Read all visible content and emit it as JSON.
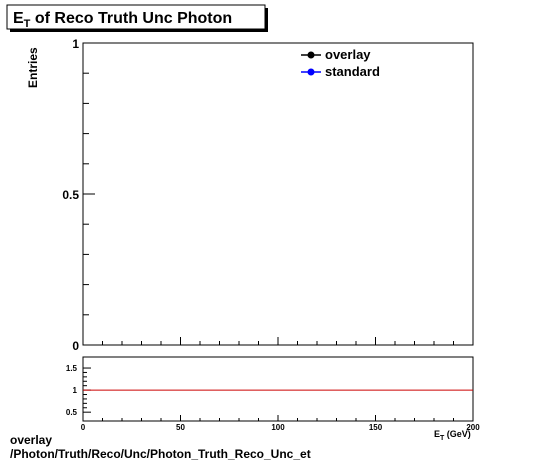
{
  "chart_data": [
    {
      "type": "line",
      "title": "E",
      "title_sub": "T",
      "title_rest": " of Reco Truth Unc Photon",
      "xlabel": "E",
      "xlabel_sub": "T",
      "xlabel_unit": " (GeV)",
      "ylabel": "Entries",
      "xlim": [
        0,
        200
      ],
      "ylim": [
        0,
        1
      ],
      "x_ticks": [
        "0",
        "50",
        "100",
        "150",
        "200"
      ],
      "y_ticks": [
        "0",
        "0.5",
        "1"
      ],
      "legend": "top-right",
      "series": [
        {
          "name": "overlay",
          "color": "#000000",
          "marker": "circle",
          "x": [],
          "y": []
        },
        {
          "name": "standard",
          "color": "#0000ff",
          "marker": "circle",
          "x": [],
          "y": []
        }
      ]
    },
    {
      "type": "line",
      "title": "",
      "xlim": [
        0,
        200
      ],
      "ylim": [
        0.3,
        1.75
      ],
      "y_ticks": [
        "0.5",
        "1",
        "1.5"
      ],
      "reference_line": {
        "y": 1,
        "color": "#cc0000"
      }
    }
  ],
  "footer": {
    "line1": "overlay",
    "line2": "/Photon/Truth/Reco/Unc/Photon_Truth_Reco_Unc_et"
  }
}
